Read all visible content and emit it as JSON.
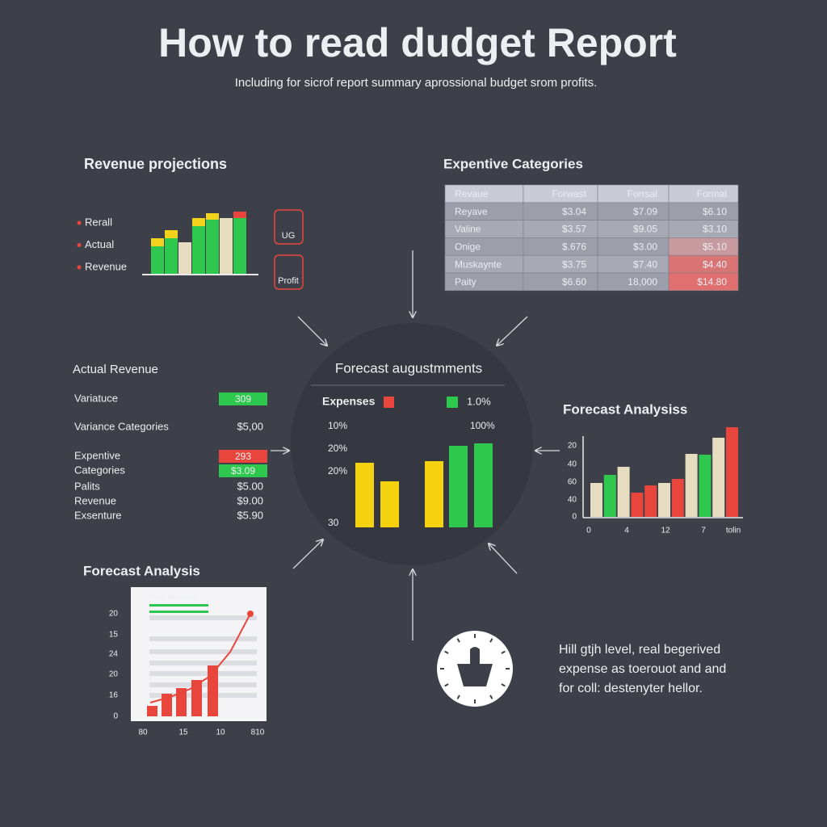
{
  "title": "How to read dudget Report",
  "subtitle": "Including for sicrof report summary aprossional budget srom profits.",
  "chart_data": [
    {
      "type": "bar",
      "title": "Revenue projections",
      "legend": [
        "Rerall",
        "Actual",
        "Revenue"
      ],
      "values": [
        35,
        45,
        40,
        60,
        68,
        70,
        70
      ],
      "colors": [
        "#2fc84f",
        "#2fc84f",
        "#e6dcc0",
        "#2fc84f",
        "#2fc84f",
        "#e6dcc0",
        "#2fc84f"
      ],
      "top_values": [
        10,
        10,
        0,
        10,
        8,
        0,
        8
      ],
      "top_colors": [
        "#f2d21a",
        "#f2d21a",
        "#f2d21a",
        "#f2d21a",
        "#f2d21a",
        "#f2d21a",
        "#e8453c"
      ],
      "ylim": [
        0,
        80
      ],
      "icons": [
        "UG",
        "Profit"
      ]
    },
    {
      "type": "bar",
      "title": "Forecast augustmments",
      "legend": [
        {
          "name": "Expenses",
          "color": "#e8453c"
        },
        {
          "name": "1.0%",
          "color": "#2fc84f"
        }
      ],
      "axis_labels_left": [
        "10%",
        "20%",
        "20%",
        "30"
      ],
      "axis_labels_right": [
        "100%"
      ],
      "values": [
        80,
        57,
        82,
        101,
        104
      ],
      "colors": [
        "#f5d20e",
        "#f5d20e",
        "#f5d20e",
        "#2fc84f",
        "#2fc84f"
      ],
      "ylim": [
        0,
        120
      ]
    },
    {
      "type": "bar",
      "title": "Forecast Analysiss",
      "axis_labels_y": [
        "20",
        "40",
        "60",
        "40",
        "0"
      ],
      "axis_labels_x": [
        "0",
        "4",
        "12",
        "7",
        "tolin"
      ],
      "values": [
        42,
        52,
        62,
        30,
        39,
        42,
        47,
        78,
        77,
        98,
        111
      ],
      "colors": [
        "#e6dcc0",
        "#2fc84f",
        "#e6dcc0",
        "#e8453c",
        "#e8453c",
        "#e6dcc0",
        "#e8453c",
        "#e6dcc0",
        "#2fc84f",
        "#e6dcc0",
        "#e8453c"
      ],
      "ylim": [
        0,
        120
      ]
    },
    {
      "type": "bar",
      "title": "Forecast Analysis",
      "doc_title": "Best revenue",
      "axis_labels_y": [
        "20",
        "15",
        "24",
        "20",
        "16",
        "0"
      ],
      "axis_labels_x": [
        "80",
        "15",
        "10",
        "810"
      ],
      "values": [
        13,
        28,
        35,
        45,
        63
      ],
      "color": "#e8453c",
      "line_values": [
        17,
        24,
        34,
        50,
        80,
        127
      ],
      "ylim": [
        0,
        150
      ]
    }
  ],
  "table": {
    "title": "Expentive Categories",
    "header": [
      "Revaue",
      "Forwast",
      "Forrsal",
      "Formal"
    ],
    "rows": [
      [
        "Reyave",
        "$3.04",
        "$7.09",
        "$6.10"
      ],
      [
        "Valine",
        "$3.57",
        "$9.05",
        "$3.10"
      ],
      [
        "Onige",
        "$.676",
        "$3.00",
        "$5.10"
      ],
      [
        "Muskaynte",
        "$3.75",
        "$7.40",
        "$4.40"
      ],
      [
        "Paity",
        "$6.60",
        "18,000",
        "$14.80"
      ]
    ]
  },
  "list": {
    "title": "Actual Revenue",
    "rows": [
      {
        "label": "Variatuce",
        "value": "309",
        "badge": "#2fc84f"
      },
      {
        "label": "Variance Categories",
        "value": "$5,00"
      },
      {
        "label": "Expentive",
        "value": "293",
        "badge": "#e8453c"
      },
      {
        "label": "Categories",
        "value": "$3.09",
        "badge": "#2fc84f"
      },
      {
        "label": "Palits",
        "value": "$5.00"
      },
      {
        "label": "Revenue",
        "value": "$9.00"
      },
      {
        "label": "Exsenture",
        "value": "$5.90"
      }
    ]
  },
  "note": [
    "Hill gtjh level, real begerived",
    "expense as toerouot and and",
    "for coll: destenyter hellor."
  ]
}
